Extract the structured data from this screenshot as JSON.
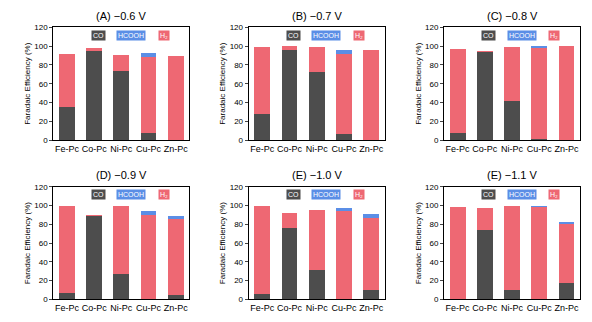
{
  "chart_data": [
    {
      "type": "bar",
      "title": "(A) −0.6 V",
      "y_label": "Faradaic Efficiency (%)",
      "stacked": true,
      "legend": "top",
      "categories": [
        "Fe-Pc",
        "Co-Pc",
        "Ni-Pc",
        "Cu-Pc",
        "Zn-Pc"
      ],
      "series": [
        {
          "name": "CO",
          "color": "#4d4d4d",
          "values": [
            35,
            95,
            74,
            8,
            0
          ]
        },
        {
          "name": "HCOOH",
          "color": "#5b8ee6",
          "values": [
            0,
            0,
            0,
            5,
            0
          ]
        },
        {
          "name": "H₂",
          "color": "#ee6873",
          "values": [
            57,
            3,
            17,
            80,
            89
          ]
        }
      ],
      "ylim": [
        0,
        120
      ],
      "yticks": [
        0,
        20,
        40,
        60,
        80,
        100,
        120
      ]
    },
    {
      "type": "bar",
      "title": "(B) −0.7 V",
      "y_label": "Faradaic Efficiency (%)",
      "stacked": true,
      "legend": "top",
      "categories": [
        "Fe-Pc",
        "Co-Pc",
        "Ni-Pc",
        "Cu-Pc",
        "Zn-Pc"
      ],
      "series": [
        {
          "name": "CO",
          "color": "#4d4d4d",
          "values": [
            28,
            96,
            73,
            7,
            0
          ]
        },
        {
          "name": "HCOOH",
          "color": "#5b8ee6",
          "values": [
            0,
            0,
            0,
            4,
            0
          ]
        },
        {
          "name": "H₂",
          "color": "#ee6873",
          "values": [
            71,
            4,
            26,
            85,
            96
          ]
        }
      ],
      "ylim": [
        0,
        120
      ],
      "yticks": [
        0,
        20,
        40,
        60,
        80,
        100,
        120
      ]
    },
    {
      "type": "bar",
      "title": "(C) −0.8 V",
      "y_label": "Faradaic Efficiency (%)",
      "stacked": true,
      "legend": "top",
      "categories": [
        "Fe-Pc",
        "Co-Pc",
        "Ni-Pc",
        "Cu-Pc",
        "Zn-Pc"
      ],
      "series": [
        {
          "name": "CO",
          "color": "#4d4d4d",
          "values": [
            8,
            94,
            42,
            1,
            0
          ]
        },
        {
          "name": "HCOOH",
          "color": "#5b8ee6",
          "values": [
            0,
            0,
            0,
            2,
            0
          ]
        },
        {
          "name": "H₂",
          "color": "#ee6873",
          "values": [
            89,
            1,
            57,
            97,
            100
          ]
        }
      ],
      "ylim": [
        0,
        120
      ],
      "yticks": [
        0,
        20,
        40,
        60,
        80,
        100,
        120
      ]
    },
    {
      "type": "bar",
      "title": "(D) −0.9 V",
      "y_label": "Faradaic Efficiency (%)",
      "stacked": true,
      "legend": "top",
      "categories": [
        "Fe-Pc",
        "Co-Pc",
        "Ni-Pc",
        "Cu-Pc",
        "Zn-Pc"
      ],
      "series": [
        {
          "name": "CO",
          "color": "#4d4d4d",
          "values": [
            7,
            89,
            27,
            1,
            5
          ]
        },
        {
          "name": "HCOOH",
          "color": "#5b8ee6",
          "values": [
            0,
            0,
            0,
            4,
            3
          ]
        },
        {
          "name": "H₂",
          "color": "#ee6873",
          "values": [
            92,
            1,
            73,
            89,
            81
          ]
        }
      ],
      "ylim": [
        0,
        120
      ],
      "yticks": [
        0,
        20,
        40,
        60,
        80,
        100,
        120
      ]
    },
    {
      "type": "bar",
      "title": "(E) −1.0 V",
      "y_label": "Faradaic Efficiency (%)",
      "stacked": true,
      "legend": "top",
      "categories": [
        "Fe-Pc",
        "Co-Pc",
        "Ni-Pc",
        "Cu-Pc",
        "Zn-Pc"
      ],
      "series": [
        {
          "name": "CO",
          "color": "#4d4d4d",
          "values": [
            6,
            76,
            31,
            1,
            10
          ]
        },
        {
          "name": "HCOOH",
          "color": "#5b8ee6",
          "values": [
            0,
            0,
            0,
            3,
            4
          ]
        },
        {
          "name": "H₂",
          "color": "#ee6873",
          "values": [
            94,
            16,
            64,
            93,
            77
          ]
        }
      ],
      "ylim": [
        0,
        120
      ],
      "yticks": [
        0,
        20,
        40,
        60,
        80,
        100,
        120
      ]
    },
    {
      "type": "bar",
      "title": "(E) −1.1 V",
      "y_label": "Faradaic Efficiency (%)",
      "stacked": true,
      "legend": "top",
      "categories": [
        "Fe-Pc",
        "Co-Pc",
        "Ni-Pc",
        "Cu-Pc",
        "Zn-Pc"
      ],
      "series": [
        {
          "name": "CO",
          "color": "#4d4d4d",
          "values": [
            1,
            74,
            10,
            1,
            18
          ]
        },
        {
          "name": "HCOOH",
          "color": "#5b8ee6",
          "values": [
            0,
            0,
            0,
            1,
            3
          ]
        },
        {
          "name": "H₂",
          "color": "#ee6873",
          "values": [
            97,
            23,
            90,
            97,
            62
          ]
        }
      ],
      "ylim": [
        0,
        120
      ],
      "yticks": [
        0,
        20,
        40,
        60,
        80,
        100,
        120
      ]
    }
  ]
}
